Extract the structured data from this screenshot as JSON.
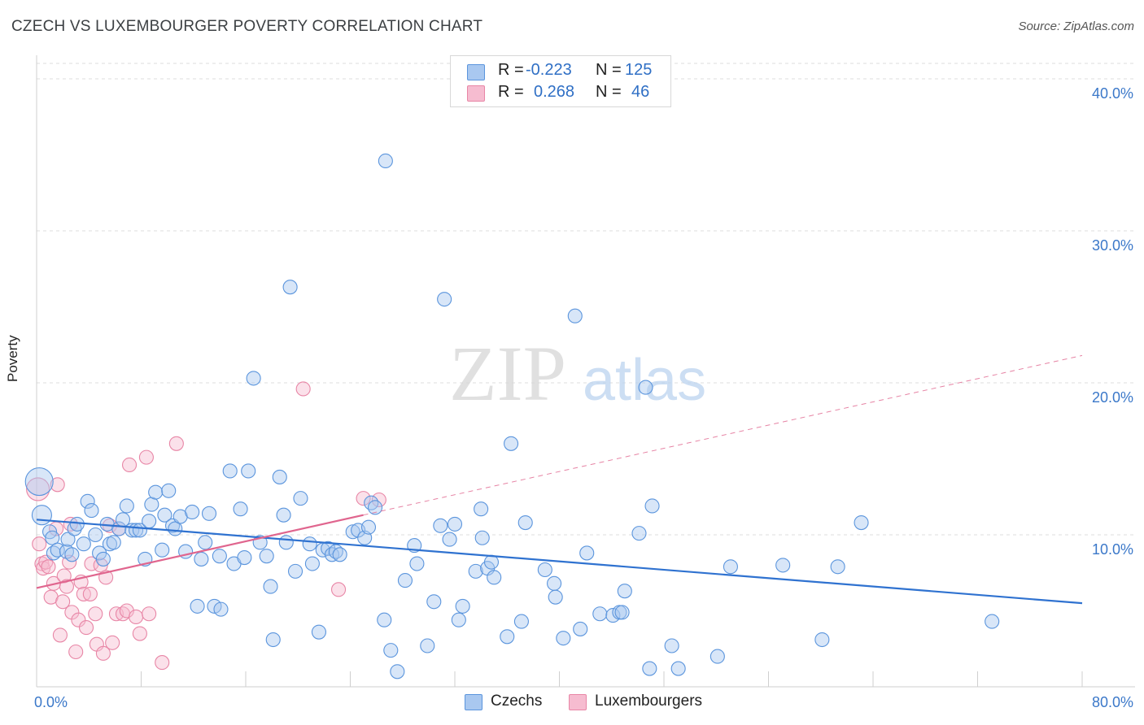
{
  "title": "CZECH VS LUXEMBOURGER POVERTY CORRELATION CHART",
  "source": "Source: ZipAtlas.com",
  "watermark": {
    "zip": "ZIP",
    "atlas": "atlas"
  },
  "colors": {
    "czech_fill": "#a9c8f0",
    "czech_stroke": "#5b95dd",
    "czech_line": "#2f72d0",
    "lux_fill": "#f6bcd0",
    "lux_stroke": "#e886a6",
    "lux_line": "#e0658e",
    "tick_text": "#3b78c9",
    "grid": "#dcdcdc"
  },
  "stats": {
    "czech": {
      "r_label": "R =",
      "r_value": "-0.223",
      "n_label": "N =",
      "n_value": "125"
    },
    "lux": {
      "r_label": "R =",
      "r_value": "0.268",
      "n_label": "N =",
      "n_value": "46"
    }
  },
  "legend": {
    "czech": "Czechs",
    "lux": "Luxembourgers"
  },
  "chart_data": {
    "type": "scatter",
    "ylabel": "Poverty",
    "xlim": [
      0,
      80
    ],
    "ylim": [
      0,
      42
    ],
    "x_tick_labels": [
      {
        "x": 0,
        "label": "0.0%"
      },
      {
        "x": 80,
        "label": "80.0%"
      }
    ],
    "y_tick_labels": [
      {
        "y": 10,
        "label": "10.0%"
      },
      {
        "y": 20,
        "label": "20.0%"
      },
      {
        "y": 30,
        "label": "30.0%"
      },
      {
        "y": 40,
        "label": "40.0%"
      }
    ],
    "grid": true,
    "series": [
      {
        "name": "Czechs",
        "trend": {
          "x0": 0,
          "y0": 11.0,
          "x1": 80,
          "y1": 5.5
        },
        "points": [
          [
            0.2,
            13.5
          ],
          [
            0.4,
            11.3
          ],
          [
            1,
            10.2
          ],
          [
            1.2,
            9.8
          ],
          [
            1.3,
            8.8
          ],
          [
            1.6,
            9.0
          ],
          [
            2.3,
            8.9
          ],
          [
            2.4,
            9.7
          ],
          [
            2.7,
            8.7
          ],
          [
            2.9,
            10.4
          ],
          [
            3.1,
            10.7
          ],
          [
            3.6,
            9.4
          ],
          [
            3.9,
            12.2
          ],
          [
            4.2,
            11.6
          ],
          [
            4.5,
            10.0
          ],
          [
            4.8,
            8.8
          ],
          [
            5.1,
            8.4
          ],
          [
            5.4,
            10.7
          ],
          [
            5.6,
            9.4
          ],
          [
            5.9,
            9.5
          ],
          [
            6.3,
            10.4
          ],
          [
            6.6,
            11.0
          ],
          [
            6.9,
            11.9
          ],
          [
            7.3,
            10.3
          ],
          [
            7.6,
            10.3
          ],
          [
            7.9,
            10.3
          ],
          [
            8.3,
            8.4
          ],
          [
            8.6,
            10.9
          ],
          [
            8.8,
            12.0
          ],
          [
            9.1,
            12.8
          ],
          [
            9.6,
            9.0
          ],
          [
            9.8,
            11.3
          ],
          [
            10.1,
            12.9
          ],
          [
            10.4,
            10.6
          ],
          [
            10.6,
            10.4
          ],
          [
            11.0,
            11.2
          ],
          [
            11.4,
            8.9
          ],
          [
            11.9,
            11.5
          ],
          [
            12.3,
            5.3
          ],
          [
            12.6,
            8.4
          ],
          [
            12.9,
            9.5
          ],
          [
            13.2,
            11.4
          ],
          [
            13.6,
            5.3
          ],
          [
            14.0,
            8.6
          ],
          [
            14.1,
            5.1
          ],
          [
            14.8,
            14.2
          ],
          [
            15.1,
            8.1
          ],
          [
            15.6,
            11.7
          ],
          [
            15.9,
            8.5
          ],
          [
            16.2,
            14.2
          ],
          [
            16.6,
            20.3
          ],
          [
            17.1,
            9.5
          ],
          [
            17.6,
            8.6
          ],
          [
            17.9,
            6.6
          ],
          [
            18.1,
            3.1
          ],
          [
            18.6,
            13.8
          ],
          [
            18.9,
            11.3
          ],
          [
            19.1,
            9.5
          ],
          [
            19.4,
            26.3
          ],
          [
            19.8,
            7.6
          ],
          [
            20.2,
            12.4
          ],
          [
            20.9,
            9.4
          ],
          [
            21.1,
            8.1
          ],
          [
            21.6,
            3.6
          ],
          [
            21.9,
            9.0
          ],
          [
            22.3,
            9.1
          ],
          [
            22.6,
            8.7
          ],
          [
            22.9,
            8.9
          ],
          [
            23.2,
            8.7
          ],
          [
            24.2,
            10.2
          ],
          [
            24.6,
            10.3
          ],
          [
            25.1,
            9.8
          ],
          [
            25.4,
            10.5
          ],
          [
            25.6,
            12.1
          ],
          [
            25.9,
            11.8
          ],
          [
            26.6,
            4.4
          ],
          [
            26.7,
            34.6
          ],
          [
            27.1,
            2.4
          ],
          [
            27.6,
            1.0
          ],
          [
            28.2,
            7.0
          ],
          [
            28.9,
            9.3
          ],
          [
            29.1,
            8.1
          ],
          [
            29.9,
            2.7
          ],
          [
            30.4,
            5.6
          ],
          [
            30.9,
            10.6
          ],
          [
            31.2,
            25.5
          ],
          [
            31.6,
            9.7
          ],
          [
            32.0,
            10.7
          ],
          [
            32.3,
            4.4
          ],
          [
            32.6,
            5.3
          ],
          [
            33.6,
            7.6
          ],
          [
            34.0,
            11.7
          ],
          [
            34.1,
            9.8
          ],
          [
            34.5,
            7.8
          ],
          [
            34.8,
            8.2
          ],
          [
            35.0,
            7.2
          ],
          [
            36.0,
            3.3
          ],
          [
            36.3,
            16.0
          ],
          [
            37.1,
            4.3
          ],
          [
            37.4,
            10.8
          ],
          [
            38.9,
            7.7
          ],
          [
            39.6,
            6.8
          ],
          [
            39.7,
            5.9
          ],
          [
            40.3,
            3.2
          ],
          [
            41.2,
            24.4
          ],
          [
            41.6,
            3.8
          ],
          [
            42.1,
            8.8
          ],
          [
            43.1,
            4.8
          ],
          [
            44.1,
            4.7
          ],
          [
            44.6,
            4.9
          ],
          [
            44.8,
            4.9
          ],
          [
            45.0,
            6.3
          ],
          [
            46.1,
            10.1
          ],
          [
            46.6,
            19.7
          ],
          [
            46.9,
            1.2
          ],
          [
            47.1,
            11.9
          ],
          [
            48.6,
            2.7
          ],
          [
            49.1,
            1.2
          ],
          [
            52.1,
            2.0
          ],
          [
            53.1,
            7.9
          ],
          [
            57.1,
            8.0
          ],
          [
            60.1,
            3.1
          ],
          [
            61.3,
            7.9
          ],
          [
            63.1,
            10.8
          ],
          [
            73.1,
            4.3
          ]
        ]
      },
      {
        "name": "Luxembourgers",
        "trend": {
          "x0": 0,
          "y0": 6.5,
          "x1": 25,
          "y1": 11.3
        },
        "trend_dashed": {
          "x0": 25,
          "y0": 11.3,
          "x1": 80,
          "y1": 21.8
        },
        "points": [
          [
            0.1,
            13.0
          ],
          [
            0.2,
            9.4
          ],
          [
            0.4,
            8.1
          ],
          [
            0.5,
            7.8
          ],
          [
            0.7,
            8.2
          ],
          [
            0.9,
            7.9
          ],
          [
            1.1,
            5.9
          ],
          [
            1.3,
            6.8
          ],
          [
            1.5,
            10.4
          ],
          [
            1.6,
            13.3
          ],
          [
            1.8,
            3.4
          ],
          [
            2.0,
            5.6
          ],
          [
            2.1,
            7.3
          ],
          [
            2.3,
            6.6
          ],
          [
            2.5,
            8.2
          ],
          [
            2.6,
            10.7
          ],
          [
            2.7,
            4.9
          ],
          [
            3.0,
            2.3
          ],
          [
            3.2,
            4.4
          ],
          [
            3.4,
            6.9
          ],
          [
            3.6,
            6.1
          ],
          [
            3.8,
            3.9
          ],
          [
            4.1,
            6.1
          ],
          [
            4.2,
            8.1
          ],
          [
            4.5,
            4.8
          ],
          [
            4.6,
            2.8
          ],
          [
            4.9,
            8.0
          ],
          [
            5.1,
            2.2
          ],
          [
            5.3,
            7.2
          ],
          [
            5.6,
            10.6
          ],
          [
            5.8,
            2.9
          ],
          [
            6.1,
            4.8
          ],
          [
            6.3,
            10.4
          ],
          [
            6.6,
            4.8
          ],
          [
            6.9,
            5.0
          ],
          [
            7.1,
            14.6
          ],
          [
            7.6,
            4.6
          ],
          [
            7.9,
            3.5
          ],
          [
            8.4,
            15.1
          ],
          [
            8.6,
            4.8
          ],
          [
            9.6,
            1.6
          ],
          [
            10.7,
            16.0
          ],
          [
            20.4,
            19.6
          ],
          [
            23.1,
            6.4
          ],
          [
            25.0,
            12.4
          ],
          [
            26.2,
            12.3
          ]
        ]
      }
    ]
  }
}
